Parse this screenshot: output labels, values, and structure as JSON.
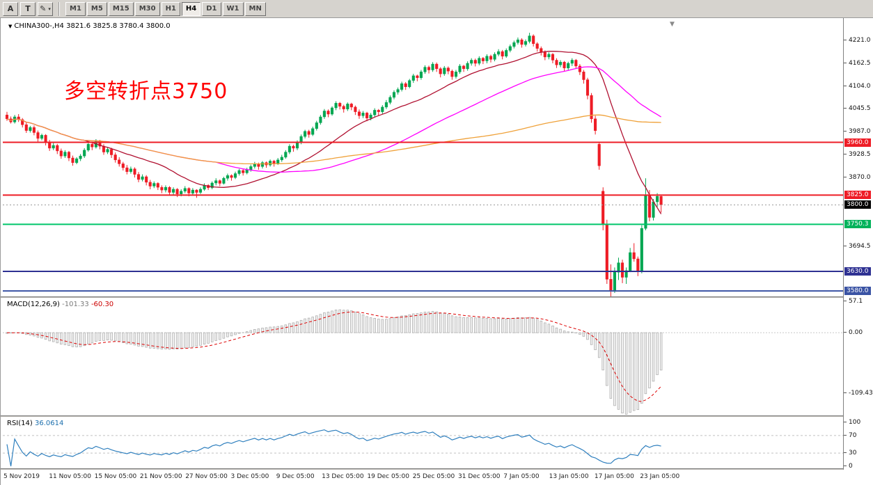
{
  "toolbar": {
    "buttons": [
      {
        "label": "A"
      },
      {
        "label": "T"
      }
    ],
    "draw_tool_icon": "pencil-icon",
    "timeframes": [
      "M1",
      "M5",
      "M15",
      "M30",
      "H1",
      "H4",
      "D1",
      "W1",
      "MN"
    ],
    "active_timeframe": "H4"
  },
  "chart": {
    "symbol": "CHINA300-",
    "timeframe": "H4",
    "symbol_line": "CHINA300-,H4 3821.6 3825.8 3780.4 3800.0",
    "ohlc": {
      "open": "3821.6",
      "high": "3825.8",
      "low": "3780.4",
      "close": "3800.0"
    },
    "annotation": {
      "text": "多空转折点3750",
      "color": "#ff0000"
    },
    "price_axis_labels": [
      "4221.0",
      "4162.5",
      "4104.0",
      "4045.5",
      "3987.0",
      "3928.5",
      "3870.0",
      "3694.5"
    ],
    "price_tags": [
      {
        "value": "3960.0",
        "price": 3960.0,
        "bg": "#ee1c25",
        "fg": "#ffffff"
      },
      {
        "value": "3825.0",
        "price": 3825.0,
        "bg": "#ee1c25",
        "fg": "#ffffff"
      },
      {
        "value": "3800.0",
        "price": 3800.0,
        "bg": "#000000",
        "fg": "#ffffff"
      },
      {
        "value": "3750.3",
        "price": 3750.3,
        "bg": "#00b25a",
        "fg": "#ffffff"
      },
      {
        "value": "3630.0",
        "price": 3630.0,
        "bg": "#2e3192",
        "fg": "#ffffff"
      },
      {
        "value": "3580.0",
        "price": 3580.0,
        "bg": "#3a53a4",
        "fg": "#ffffff"
      }
    ],
    "hlines": [
      {
        "price": 3960.0,
        "color": "#ee1c25",
        "width": 2
      },
      {
        "price": 3825.0,
        "color": "#ee1c25",
        "width": 2
      },
      {
        "price": 3800.0,
        "color": "#999999",
        "width": 1,
        "dash": "2,3"
      },
      {
        "price": 3750.3,
        "color": "#00c56a",
        "width": 2
      },
      {
        "price": 3630.0,
        "color": "#2e3192",
        "width": 2
      },
      {
        "price": 3580.0,
        "color": "#3a53a4",
        "width": 2
      }
    ],
    "time_axis_labels": [
      "5 Nov 2019",
      "11 Nov 05:00",
      "15 Nov 05:00",
      "21 Nov 05:00",
      "27 Nov 05:00",
      "3 Dec 05:00",
      "9 Dec 05:00",
      "13 Dec 05:00",
      "19 Dec 05:00",
      "25 Dec 05:00",
      "31 Dec 05:00",
      "7 Jan 05:00",
      "13 Jan 05:00",
      "17 Jan 05:00",
      "23 Jan 05:00"
    ]
  },
  "macd": {
    "label": "MACD(12,26,9)",
    "main_value": "-101.33",
    "signal_value": "-60.30",
    "scale_labels": [
      {
        "text": "57.1",
        "value": 57.1
      },
      {
        "text": "0.00",
        "value": 0
      },
      {
        "text": "-109.43",
        "value": -109.43
      }
    ]
  },
  "rsi": {
    "label": "RSI(14)",
    "value": "36.0614",
    "scale_labels": [
      {
        "text": "100",
        "value": 100
      },
      {
        "text": "70",
        "value": 70
      },
      {
        "text": "30",
        "value": 30
      },
      {
        "text": "0",
        "value": 0
      }
    ],
    "levels": [
      70,
      30
    ]
  },
  "chart_data": {
    "type": "candlestick",
    "title": "CHINA300- H4",
    "price_range": [
      3566,
      4274
    ],
    "up_color": "#00a651",
    "down_color": "#ee1c25",
    "x_labels": [
      "5 Nov 2019",
      "11 Nov 05:00",
      "15 Nov 05:00",
      "21 Nov 05:00",
      "27 Nov 05:00",
      "3 Dec 05:00",
      "9 Dec 05:00",
      "13 Dec 05:00",
      "19 Dec 05:00",
      "25 Dec 05:00",
      "31 Dec 05:00",
      "7 Jan 05:00",
      "13 Jan 05:00",
      "17 Jan 05:00",
      "23 Jan 05:00"
    ],
    "overlays": [
      {
        "name": "ma-fast",
        "type": "sma",
        "period": 21,
        "color": "#b01030"
      },
      {
        "name": "ma-mid",
        "type": "sma",
        "period": 55,
        "color": "#ff00ff"
      },
      {
        "name": "ma-slow",
        "type": "sma",
        "period": 120,
        "color": "#efa139"
      }
    ],
    "indicators": [
      {
        "name": "MACD",
        "params": [
          12,
          26,
          9
        ],
        "values": [
          -101.33,
          -60.3
        ],
        "range": [
          -150,
          62
        ]
      },
      {
        "name": "RSI",
        "params": [
          14
        ],
        "values": [
          36.0614
        ],
        "range": [
          0,
          100
        ],
        "levels": [
          70,
          30
        ]
      }
    ],
    "candles_ohlc": [
      [
        4030,
        4038,
        4015,
        4020
      ],
      [
        4020,
        4026,
        4008,
        4012
      ],
      [
        4012,
        4030,
        4008,
        4025
      ],
      [
        4025,
        4032,
        4012,
        4018
      ],
      [
        4018,
        4022,
        3998,
        4005
      ],
      [
        4005,
        4012,
        3984,
        3990
      ],
      [
        3990,
        4002,
        3985,
        3998
      ],
      [
        3998,
        4003,
        3978,
        3985
      ],
      [
        3985,
        3990,
        3962,
        3970
      ],
      [
        3970,
        3982,
        3965,
        3978
      ],
      [
        3978,
        3981,
        3952,
        3960
      ],
      [
        3960,
        3966,
        3938,
        3945
      ],
      [
        3945,
        3958,
        3940,
        3952
      ],
      [
        3952,
        3956,
        3930,
        3938
      ],
      [
        3938,
        3944,
        3918,
        3925
      ],
      [
        3925,
        3940,
        3920,
        3935
      ],
      [
        3935,
        3938,
        3912,
        3920
      ],
      [
        3920,
        3926,
        3900,
        3908
      ],
      [
        3908,
        3922,
        3904,
        3918
      ],
      [
        3918,
        3930,
        3912,
        3925
      ],
      [
        3925,
        3945,
        3920,
        3940
      ],
      [
        3940,
        3960,
        3936,
        3955
      ],
      [
        3955,
        3962,
        3940,
        3948
      ],
      [
        3948,
        3968,
        3944,
        3962
      ],
      [
        3962,
        3966,
        3942,
        3950
      ],
      [
        3950,
        3955,
        3928,
        3935
      ],
      [
        3935,
        3948,
        3930,
        3942
      ],
      [
        3942,
        3946,
        3920,
        3928
      ],
      [
        3928,
        3934,
        3908,
        3915
      ],
      [
        3915,
        3922,
        3898,
        3905
      ],
      [
        3905,
        3910,
        3888,
        3895
      ],
      [
        3895,
        3902,
        3878,
        3885
      ],
      [
        3885,
        3898,
        3880,
        3892
      ],
      [
        3892,
        3896,
        3870,
        3878
      ],
      [
        3878,
        3884,
        3858,
        3865
      ],
      [
        3865,
        3878,
        3860,
        3872
      ],
      [
        3872,
        3876,
        3850,
        3858
      ],
      [
        3858,
        3864,
        3840,
        3848
      ],
      [
        3848,
        3860,
        3843,
        3855
      ],
      [
        3855,
        3858,
        3838,
        3845
      ],
      [
        3845,
        3850,
        3830,
        3838
      ],
      [
        3838,
        3850,
        3832,
        3845
      ],
      [
        3845,
        3848,
        3824,
        3832
      ],
      [
        3832,
        3845,
        3826,
        3840
      ],
      [
        3840,
        3843,
        3820,
        3828
      ],
      [
        3828,
        3840,
        3822,
        3835
      ],
      [
        3835,
        3848,
        3830,
        3842
      ],
      [
        3842,
        3845,
        3822,
        3830
      ],
      [
        3830,
        3843,
        3824,
        3838
      ],
      [
        3838,
        3840,
        3818,
        3832
      ],
      [
        3832,
        3845,
        3828,
        3840
      ],
      [
        3840,
        3855,
        3836,
        3850
      ],
      [
        3850,
        3853,
        3838,
        3844
      ],
      [
        3844,
        3860,
        3840,
        3856
      ],
      [
        3856,
        3868,
        3850,
        3862
      ],
      [
        3862,
        3865,
        3848,
        3855
      ],
      [
        3855,
        3872,
        3852,
        3868
      ],
      [
        3868,
        3880,
        3862,
        3875
      ],
      [
        3875,
        3878,
        3862,
        3870
      ],
      [
        3870,
        3885,
        3866,
        3880
      ],
      [
        3880,
        3892,
        3875,
        3888
      ],
      [
        3888,
        3891,
        3875,
        3882
      ],
      [
        3882,
        3895,
        3878,
        3890
      ],
      [
        3890,
        3903,
        3885,
        3898
      ],
      [
        3898,
        3910,
        3893,
        3905
      ],
      [
        3905,
        3908,
        3890,
        3898
      ],
      [
        3898,
        3912,
        3893,
        3908
      ],
      [
        3908,
        3911,
        3895,
        3902
      ],
      [
        3902,
        3916,
        3898,
        3912
      ],
      [
        3912,
        3915,
        3898,
        3906
      ],
      [
        3906,
        3920,
        3902,
        3915
      ],
      [
        3915,
        3928,
        3910,
        3922
      ],
      [
        3922,
        3940,
        3918,
        3935
      ],
      [
        3935,
        3955,
        3930,
        3950
      ],
      [
        3950,
        3954,
        3936,
        3945
      ],
      [
        3945,
        3965,
        3940,
        3960
      ],
      [
        3960,
        3980,
        3955,
        3975
      ],
      [
        3975,
        3992,
        3970,
        3988
      ],
      [
        3988,
        3992,
        3972,
        3980
      ],
      [
        3980,
        4000,
        3976,
        3995
      ],
      [
        3995,
        4015,
        3990,
        4010
      ],
      [
        4010,
        4030,
        4005,
        4025
      ],
      [
        4025,
        4045,
        4020,
        4040
      ],
      [
        4040,
        4044,
        4024,
        4032
      ],
      [
        4032,
        4052,
        4028,
        4048
      ],
      [
        4048,
        4065,
        4042,
        4060
      ],
      [
        4060,
        4063,
        4044,
        4052
      ],
      [
        4052,
        4056,
        4036,
        4045
      ],
      [
        4045,
        4062,
        4040,
        4058
      ],
      [
        4058,
        4061,
        4042,
        4050
      ],
      [
        4050,
        4054,
        4030,
        4038
      ],
      [
        4038,
        4044,
        4020,
        4028
      ],
      [
        4028,
        4040,
        4022,
        4035
      ],
      [
        4035,
        4038,
        4014,
        4022
      ],
      [
        4022,
        4035,
        4016,
        4030
      ],
      [
        4030,
        4047,
        4025,
        4042
      ],
      [
        4042,
        4045,
        4028,
        4038
      ],
      [
        4038,
        4055,
        4033,
        4050
      ],
      [
        4050,
        4068,
        4045,
        4062
      ],
      [
        4062,
        4080,
        4057,
        4075
      ],
      [
        4075,
        4093,
        4070,
        4088
      ],
      [
        4088,
        4100,
        4082,
        4095
      ],
      [
        4095,
        4115,
        4090,
        4110
      ],
      [
        4110,
        4114,
        4094,
        4102
      ],
      [
        4102,
        4122,
        4098,
        4118
      ],
      [
        4118,
        4135,
        4112,
        4130
      ],
      [
        4130,
        4133,
        4116,
        4125
      ],
      [
        4125,
        4145,
        4120,
        4140
      ],
      [
        4140,
        4157,
        4135,
        4152
      ],
      [
        4152,
        4156,
        4136,
        4145
      ],
      [
        4145,
        4165,
        4140,
        4160
      ],
      [
        4160,
        4164,
        4140,
        4148
      ],
      [
        4148,
        4152,
        4126,
        4135
      ],
      [
        4135,
        4155,
        4130,
        4150
      ],
      [
        4150,
        4154,
        4134,
        4142
      ],
      [
        4142,
        4146,
        4120,
        4128
      ],
      [
        4128,
        4145,
        4123,
        4140
      ],
      [
        4140,
        4160,
        4135,
        4155
      ],
      [
        4155,
        4158,
        4140,
        4148
      ],
      [
        4148,
        4167,
        4143,
        4162
      ],
      [
        4162,
        4175,
        4156,
        4170
      ],
      [
        4170,
        4174,
        4154,
        4162
      ],
      [
        4162,
        4180,
        4157,
        4175
      ],
      [
        4175,
        4178,
        4160,
        4168
      ],
      [
        4168,
        4185,
        4162,
        4180
      ],
      [
        4180,
        4184,
        4164,
        4172
      ],
      [
        4172,
        4190,
        4167,
        4185
      ],
      [
        4185,
        4198,
        4180,
        4192
      ],
      [
        4192,
        4196,
        4172,
        4180
      ],
      [
        4180,
        4200,
        4176,
        4195
      ],
      [
        4195,
        4210,
        4190,
        4205
      ],
      [
        4205,
        4220,
        4200,
        4215
      ],
      [
        4215,
        4228,
        4210,
        4222
      ],
      [
        4222,
        4226,
        4202,
        4210
      ],
      [
        4210,
        4223,
        4205,
        4218
      ],
      [
        4218,
        4240,
        4213,
        4232
      ],
      [
        4232,
        4236,
        4205,
        4212
      ],
      [
        4212,
        4216,
        4192,
        4200
      ],
      [
        4200,
        4205,
        4182,
        4190
      ],
      [
        4190,
        4195,
        4170,
        4178
      ],
      [
        4178,
        4190,
        4172,
        4185
      ],
      [
        4185,
        4188,
        4162,
        4170
      ],
      [
        4170,
        4175,
        4150,
        4158
      ],
      [
        4158,
        4170,
        4152,
        4165
      ],
      [
        4165,
        4168,
        4142,
        4150
      ],
      [
        4150,
        4166,
        4145,
        4162
      ],
      [
        4162,
        4175,
        4155,
        4170
      ],
      [
        4170,
        4173,
        4148,
        4155
      ],
      [
        4155,
        4160,
        4132,
        4140
      ],
      [
        4140,
        4145,
        4110,
        4120
      ],
      [
        4120,
        4125,
        4070,
        4080
      ],
      [
        4080,
        4086,
        4010,
        4020
      ],
      [
        4020,
        4028,
        3980,
        3990
      ],
      [
        3955,
        3960,
        3890,
        3900
      ],
      [
        3835,
        3845,
        3735,
        3750
      ],
      [
        3750,
        3762,
        3598,
        3610
      ],
      [
        3610,
        3648,
        3566,
        3580
      ],
      [
        3580,
        3640,
        3575,
        3628
      ],
      [
        3628,
        3665,
        3608,
        3652
      ],
      [
        3652,
        3660,
        3600,
        3615
      ],
      [
        3615,
        3640,
        3598,
        3632
      ],
      [
        3632,
        3690,
        3628,
        3678
      ],
      [
        3678,
        3702,
        3655,
        3662
      ],
      [
        3662,
        3668,
        3618,
        3630
      ],
      [
        3630,
        3748,
        3625,
        3740
      ],
      [
        3740,
        3868,
        3735,
        3825
      ],
      [
        3825,
        3838,
        3758,
        3768
      ],
      [
        3768,
        3815,
        3760,
        3808
      ],
      [
        3808,
        3830,
        3795,
        3822
      ],
      [
        3821.6,
        3825.8,
        3780.4,
        3800.0
      ]
    ]
  }
}
